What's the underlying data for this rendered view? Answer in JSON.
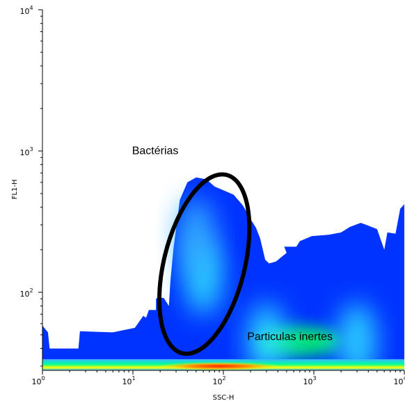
{
  "chart_data": {
    "type": "heatmap",
    "title": "",
    "xlabel": "SSC-H",
    "ylabel": "FL1-H",
    "x_scale": "log",
    "y_scale": "log",
    "xlim": [
      1,
      10000
    ],
    "ylim": [
      28,
      10000
    ],
    "x_ticks": [
      {
        "base": "10",
        "exp": "0",
        "value": 1
      },
      {
        "base": "10",
        "exp": "1",
        "value": 10
      },
      {
        "base": "10",
        "exp": "2",
        "value": 100
      },
      {
        "base": "10",
        "exp": "3",
        "value": 1000
      },
      {
        "base": "10",
        "exp": "4",
        "value": 10000
      }
    ],
    "y_ticks": [
      {
        "base": "10",
        "exp": "2",
        "value": 100
      },
      {
        "base": "10",
        "exp": "3",
        "value": 1000
      },
      {
        "base": "10",
        "exp": "4",
        "value": 10000
      }
    ],
    "grid": false,
    "colormap": [
      "#0000ff",
      "#1a6dff",
      "#38b6ff",
      "#33e6ff",
      "#00ff66",
      "#ffff00",
      "#ff3300"
    ],
    "density_outline": [
      [
        1,
        28
      ],
      [
        1,
        58
      ],
      [
        1.15,
        52
      ],
      [
        1.2,
        40
      ],
      [
        2.5,
        40
      ],
      [
        2.6,
        53
      ],
      [
        6,
        52
      ],
      [
        10.5,
        56
      ],
      [
        13,
        68
      ],
      [
        14,
        66
      ],
      [
        15,
        75
      ],
      [
        18,
        75
      ],
      [
        18,
        90
      ],
      [
        19,
        92
      ],
      [
        22,
        91
      ],
      [
        25,
        80
      ],
      [
        26,
        120
      ],
      [
        28,
        200
      ],
      [
        33,
        450
      ],
      [
        40,
        600
      ],
      [
        50,
        650
      ],
      [
        65,
        630
      ],
      [
        80,
        560
      ],
      [
        105,
        520
      ],
      [
        130,
        490
      ],
      [
        165,
        410
      ],
      [
        200,
        330
      ],
      [
        230,
        285
      ],
      [
        255,
        240
      ],
      [
        290,
        170
      ],
      [
        320,
        160
      ],
      [
        380,
        165
      ],
      [
        450,
        180
      ],
      [
        500,
        190
      ],
      [
        470,
        210
      ],
      [
        640,
        210
      ],
      [
        700,
        230
      ],
      [
        950,
        250
      ],
      [
        1450,
        255
      ],
      [
        2000,
        265
      ],
      [
        2500,
        290
      ],
      [
        3300,
        310
      ],
      [
        3800,
        300
      ],
      [
        5000,
        280
      ],
      [
        6000,
        200
      ],
      [
        6500,
        265
      ],
      [
        8000,
        260
      ],
      [
        9000,
        390
      ],
      [
        10000,
        420
      ],
      [
        10000,
        28
      ]
    ],
    "density_hotspots": [
      {
        "x": 60,
        "y": 130,
        "level": 3
      },
      {
        "x": 50,
        "y": 250,
        "level": 2
      },
      {
        "x": 700,
        "y": 45,
        "level": 4
      },
      {
        "x": 300,
        "y": 45,
        "level": 3
      },
      {
        "x": 3000,
        "y": 45,
        "level": 3
      }
    ],
    "bottom_band": {
      "level": 5,
      "hot_x": 90
    },
    "annotations": [
      {
        "text": "Bactérias",
        "x": 35,
        "y": 950
      },
      {
        "text": "Particulas inertes",
        "x": 550,
        "y": 46
      }
    ],
    "gate": {
      "shape": "ellipse",
      "label": "Bactérias",
      "color": "#000000",
      "x_range": [
        20,
        190
      ],
      "y_range": [
        38,
        660
      ]
    }
  }
}
